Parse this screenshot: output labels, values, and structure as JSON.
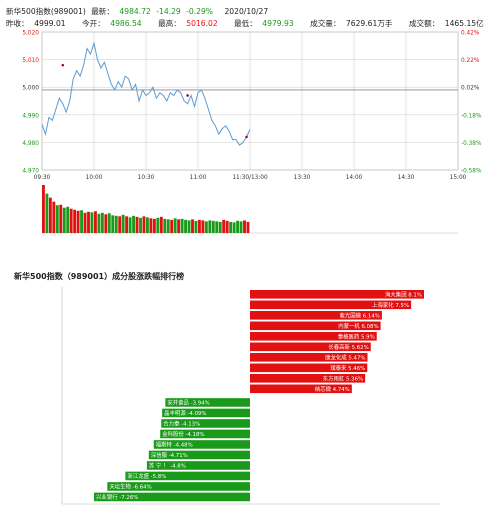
{
  "header": {
    "line1": {
      "name": "新华500指数(989001)",
      "latest_label": "最新：",
      "latest": "4984.72",
      "change": "-14.29",
      "change_pct": "-0.29%",
      "date": "2020/10/27"
    },
    "line2": {
      "prev_close_label": "昨收：",
      "prev_close": "4999.01",
      "open_label": "今开：",
      "open": "4986.54",
      "high_label": "最高：",
      "high": "5016.02",
      "low_label": "最低：",
      "low": "4979.93",
      "volume_label": "成交量：",
      "volume": "7629.61万手",
      "amount_label": "成交额：",
      "amount": "1465.15亿"
    }
  },
  "colors": {
    "up": "#e11111",
    "down": "#1a9a1a",
    "line": "#5b9bd5",
    "grid": "#cccccc"
  },
  "chart_data": [
    {
      "type": "line",
      "title": "",
      "x_ticks": [
        "09:30",
        "10:00",
        "10:30",
        "11:00",
        "11:30/13:00",
        "13:30",
        "14:00",
        "14:30",
        "15:00"
      ],
      "y_ticks_left": [
        "5,020",
        "5,010",
        "5,000",
        "4,990",
        "4,980",
        "4,970"
      ],
      "y_ticks_right": [
        "0.42%",
        "0.22%",
        "0.02%",
        "-0.18%",
        "-0.38%",
        "-0.58%"
      ],
      "ylim": [
        4970,
        5020
      ],
      "prev_close": 4999.01,
      "grid": true,
      "x_minutes": [
        0,
        2,
        4,
        6,
        8,
        10,
        12,
        14,
        16,
        18,
        20,
        22,
        24,
        26,
        28,
        30,
        32,
        34,
        36,
        38,
        40,
        42,
        44,
        46,
        48,
        50,
        52,
        54,
        56,
        58,
        60,
        62,
        64,
        66,
        68,
        70,
        72,
        74,
        76,
        78,
        80,
        82,
        84,
        86,
        88,
        90,
        92,
        94,
        96,
        98,
        100,
        102,
        104,
        106,
        108,
        110,
        112,
        114,
        116,
        118,
        120
      ],
      "price": [
        4986.5,
        4983,
        4989,
        4988,
        4992,
        4996,
        4994,
        4991,
        4995,
        5003,
        5006,
        5004,
        5008,
        5014,
        5012,
        5016,
        5010,
        5007,
        5009,
        5005,
        5001,
        4999,
        5002,
        5000,
        5004,
        5003,
        4999,
        5001,
        4995,
        4999,
        4997,
        4998,
        5000,
        4996,
        4998,
        4997,
        4995,
        4998,
        4997,
        4999,
        4998,
        4995,
        4994,
        4997,
        4993,
        4998,
        4999,
        4996,
        4992,
        4988,
        4986,
        4983,
        4985,
        4986,
        4984,
        4981,
        4981,
        4979,
        4980,
        4982,
        4984.72
      ],
      "volume_bars": [
        95,
        78,
        70,
        62,
        55,
        56,
        50,
        52,
        48,
        46,
        44,
        45,
        40,
        42,
        41,
        43,
        38,
        40,
        37,
        39,
        35,
        34,
        33,
        36,
        33,
        31,
        34,
        32,
        30,
        33,
        31,
        29,
        28,
        30,
        32,
        28,
        27,
        26,
        29,
        27,
        28,
        26,
        25,
        27,
        24,
        26,
        25,
        23,
        25,
        24,
        23,
        22,
        26,
        24,
        22,
        21,
        24,
        23,
        25,
        22
      ],
      "volume_up": [
        true,
        false,
        true,
        true,
        false,
        true,
        false,
        false,
        true,
        true,
        true,
        false,
        true,
        true,
        false,
        true,
        false,
        false,
        true,
        false,
        false,
        false,
        true,
        false,
        true,
        false,
        false,
        true,
        false,
        true,
        false,
        true,
        true,
        false,
        true,
        false,
        false,
        true,
        false,
        true,
        false,
        false,
        false,
        true,
        false,
        true,
        true,
        false,
        false,
        false,
        false,
        false,
        true,
        true,
        false,
        false,
        false,
        false,
        true,
        true
      ]
    },
    {
      "type": "bar",
      "orientation": "horizontal",
      "title": "新华500指数（989001）成分股涨跌幅排行榜",
      "categories": [
        "海大集团",
        "上海家化",
        "紫光国微",
        "内蒙一机",
        "泰格医药",
        "长春高新",
        "康龙化成",
        "璞泰来",
        "东方雨虹",
        "纳芯微"
      ],
      "series": [
        {
          "name": "up",
          "labels": [
            "海大集团 8.1%",
            "上海家化 7.5%",
            "紫光国微 6.14%",
            "内蒙一机 6.08%",
            "泰格医药 5.9%",
            "长春高新 5.62%",
            "康龙化成 5.47%",
            "璞泰来 5.46%",
            "东方雨虹 5.36%",
            "纳芯微 4.74%"
          ],
          "values": [
            8.1,
            7.5,
            6.14,
            6.08,
            5.9,
            5.62,
            5.47,
            5.46,
            5.36,
            4.74
          ]
        },
        {
          "name": "down",
          "labels": [
            "安井食品 -3.94%",
            "晶丰明源 -4.09%",
            "合力泰 -4.13%",
            "金科股份 -4.18%",
            "福斯特 -4.48%",
            "深信服 -4.71%",
            "苏 宁 ！ -4.8%",
            "浙江龙盛 -5.8%",
            "天坛生物 -6.64%",
            "兴业银行 -7.26%"
          ],
          "values": [
            -3.94,
            -4.09,
            -4.13,
            -4.18,
            -4.48,
            -4.71,
            -4.8,
            -5.8,
            -6.64,
            -7.26
          ]
        }
      ],
      "xlim": [
        -8.5,
        8.5
      ]
    }
  ]
}
